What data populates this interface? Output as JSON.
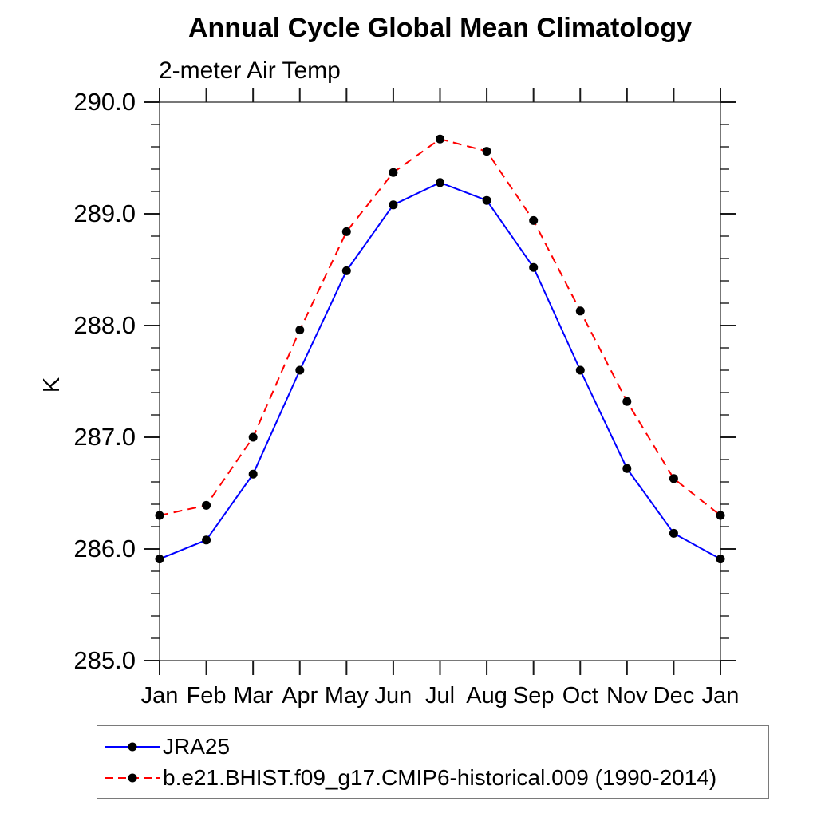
{
  "chart_data": {
    "type": "line",
    "title": "Annual Cycle Global Mean Climatology",
    "subtitle": "2-meter Air Temp",
    "ylabel": "K",
    "ylim": [
      285.0,
      290.0
    ],
    "ytick_step": 1.0,
    "yminor_step": 0.2,
    "yticks": [
      "285.0",
      "286.0",
      "287.0",
      "288.0",
      "289.0",
      "290.0"
    ],
    "categories": [
      "Jan",
      "Feb",
      "Mar",
      "Apr",
      "May",
      "Jun",
      "Jul",
      "Aug",
      "Sep",
      "Oct",
      "Nov",
      "Dec",
      "Jan"
    ],
    "grid": false,
    "legend_position": "bottom-left",
    "marker_color": "#000000",
    "axis_box": true,
    "series": [
      {
        "name": "JRA25",
        "color": "#0000ff",
        "style": "solid",
        "values": [
          285.91,
          286.08,
          286.67,
          287.6,
          288.49,
          289.08,
          289.28,
          289.12,
          288.52,
          287.6,
          286.72,
          286.14,
          285.91
        ]
      },
      {
        "name": "b.e21.BHIST.f09_g17.CMIP6-historical.009 (1990-2014)",
        "color": "#ff0000",
        "style": "dashed",
        "values": [
          286.3,
          286.39,
          287.0,
          287.96,
          288.84,
          289.37,
          289.67,
          289.56,
          288.94,
          288.13,
          287.32,
          286.63,
          286.3
        ]
      }
    ]
  }
}
